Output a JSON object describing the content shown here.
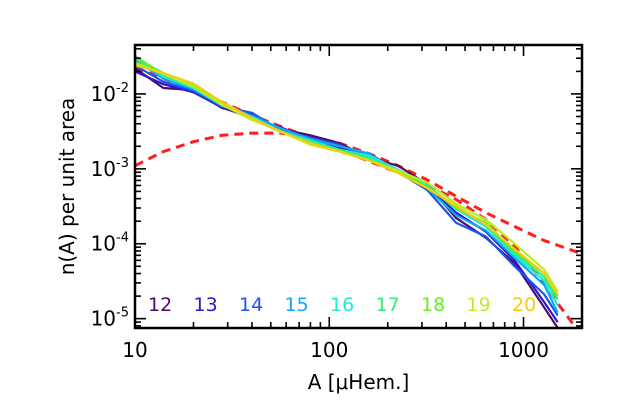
{
  "chart_data": {
    "type": "line",
    "xlabel": "A [μHem.]",
    "ylabel": "n(A) per unit area",
    "xscale": "log",
    "yscale": "log",
    "xlim": [
      10,
      2000
    ],
    "ylim": [
      7.5e-06,
      0.045
    ],
    "x_ticks": [
      {
        "value": 10,
        "label": "10"
      },
      {
        "value": 100,
        "label": "100"
      },
      {
        "value": 1000,
        "label": "1000"
      }
    ],
    "y_ticks": [
      {
        "value": 1e-05,
        "base": "10",
        "exp": "-5"
      },
      {
        "value": 0.0001,
        "base": "10",
        "exp": "-4"
      },
      {
        "value": 0.001,
        "base": "10",
        "exp": "-3"
      },
      {
        "value": 0.01,
        "base": "10",
        "exp": "-2"
      }
    ],
    "grid": false,
    "legend_placement": "bottom-left",
    "series": [
      {
        "name": "12",
        "color": "#4b0a6e",
        "x": [
          10,
          14,
          20,
          28,
          40,
          56,
          80,
          113,
          160,
          226,
          320,
          450,
          640,
          900,
          1280,
          1500
        ],
        "y": [
          0.022,
          0.012,
          0.0112,
          0.0065,
          0.0052,
          0.0034,
          0.0028,
          0.0022,
          0.0014,
          0.0011,
          0.00062,
          0.00022,
          0.00012,
          5.5e-05,
          1.4e-05,
          7.5e-06
        ]
      },
      {
        "name": "13",
        "color": "#3016c8",
        "x": [
          10,
          14,
          20,
          28,
          40,
          56,
          80,
          113,
          160,
          226,
          320,
          450,
          640,
          900,
          1280,
          1500
        ],
        "y": [
          0.02,
          0.0135,
          0.0105,
          0.0066,
          0.0048,
          0.0036,
          0.0025,
          0.0019,
          0.0016,
          0.00095,
          0.00058,
          0.00026,
          0.000145,
          6e-05,
          1.65e-05,
          9e-06
        ]
      },
      {
        "name": "14",
        "color": "#1a55f0",
        "x": [
          10,
          14,
          20,
          28,
          40,
          56,
          80,
          113,
          160,
          226,
          320,
          450,
          640,
          900,
          1280,
          1500
        ],
        "y": [
          0.024,
          0.0145,
          0.011,
          0.0068,
          0.0056,
          0.0033,
          0.0026,
          0.0021,
          0.0014,
          0.0009,
          0.00052,
          0.00019,
          0.000125,
          5e-05,
          2.1e-05,
          1.1e-05
        ]
      },
      {
        "name": "15",
        "color": "#12a8f0",
        "x": [
          10,
          14,
          20,
          28,
          40,
          56,
          80,
          113,
          160,
          226,
          320,
          450,
          640,
          900,
          1280,
          1500
        ],
        "y": [
          0.028,
          0.016,
          0.0115,
          0.0072,
          0.0051,
          0.0035,
          0.0025,
          0.002,
          0.0016,
          0.00092,
          0.00055,
          0.00024,
          0.00015,
          6.5e-05,
          2.8e-05,
          1.2e-05
        ]
      },
      {
        "name": "16",
        "color": "#1ee8e0",
        "x": [
          10,
          14,
          20,
          28,
          40,
          56,
          80,
          113,
          160,
          226,
          320,
          450,
          640,
          900,
          1280,
          1500
        ],
        "y": [
          0.03,
          0.017,
          0.012,
          0.007,
          0.0049,
          0.0032,
          0.0024,
          0.0018,
          0.0015,
          0.00098,
          0.0006,
          0.00029,
          0.00017,
          7e-05,
          3.2e-05,
          1.5e-05
        ]
      },
      {
        "name": "17",
        "color": "#2ef07a",
        "x": [
          10,
          14,
          20,
          28,
          40,
          56,
          80,
          113,
          160,
          226,
          320,
          450,
          640,
          900,
          1280,
          1500
        ],
        "y": [
          0.032,
          0.018,
          0.0125,
          0.0071,
          0.0047,
          0.0031,
          0.0023,
          0.0018,
          0.0014,
          0.00094,
          0.00058,
          0.00031,
          0.00018,
          7.5e-05,
          3.6e-05,
          1.8e-05
        ]
      },
      {
        "name": "18",
        "color": "#66ee22",
        "x": [
          10,
          14,
          20,
          28,
          40,
          56,
          80,
          113,
          160,
          226,
          320,
          450,
          640,
          900,
          1280,
          1500
        ],
        "y": [
          0.03,
          0.019,
          0.0128,
          0.0074,
          0.0046,
          0.0032,
          0.0022,
          0.0017,
          0.0013,
          0.00092,
          0.00057,
          0.0003,
          0.00019,
          8e-05,
          4e-05,
          2e-05
        ]
      },
      {
        "name": "19",
        "color": "#bbee22",
        "x": [
          10,
          14,
          20,
          28,
          40,
          56,
          80,
          113,
          160,
          226,
          320,
          450,
          640,
          900,
          1280,
          1500
        ],
        "y": [
          0.026,
          0.0185,
          0.0125,
          0.0072,
          0.0045,
          0.0032,
          0.0021,
          0.0017,
          0.0013,
          0.00095,
          0.00065,
          0.00034,
          0.00021,
          0.0001,
          4.5e-05,
          2.3e-05
        ]
      },
      {
        "name": "20",
        "color": "#f5cc10",
        "x": [
          10,
          14,
          20,
          28,
          40,
          56,
          80,
          113,
          160,
          226,
          320,
          450,
          640,
          900,
          1280,
          1500
        ],
        "y": [
          0.024,
          0.019,
          0.0138,
          0.0078,
          0.0048,
          0.0031,
          0.0022,
          0.0017,
          0.0013,
          0.00088,
          0.00055,
          0.00032,
          0.00018,
          8.5e-05,
          4e-05,
          2.1e-05
        ]
      }
    ],
    "fits": [
      {
        "color": "#ff1e1e",
        "style": "dashed",
        "x": [
          10,
          14,
          20,
          28,
          40,
          56,
          80,
          113,
          160,
          226,
          320,
          450,
          640,
          900,
          1280,
          1500,
          1800,
          2000
        ],
        "y": [
          0.0226,
          0.016,
          0.0112,
          0.0078,
          0.0052,
          0.0037,
          0.0026,
          0.0018,
          0.00127,
          0.00089,
          0.00061,
          0.00039,
          0.00021,
          9.3e-05,
          2.9e-05,
          1.6e-05,
          8.5e-06,
          5.8e-06
        ]
      },
      {
        "color": "#ff1e1e",
        "style": "dashed",
        "x": [
          10,
          14,
          20,
          28,
          40,
          56,
          80,
          113,
          160,
          226,
          320,
          450,
          640,
          900,
          1280,
          1800,
          2000
        ],
        "y": [
          0.0011,
          0.0017,
          0.0023,
          0.0028,
          0.003,
          0.003,
          0.0027,
          0.0022,
          0.0016,
          0.0011,
          0.00071,
          0.00043,
          0.00026,
          0.00017,
          0.00011,
          8.1e-05,
          7.3e-05
        ]
      }
    ]
  }
}
